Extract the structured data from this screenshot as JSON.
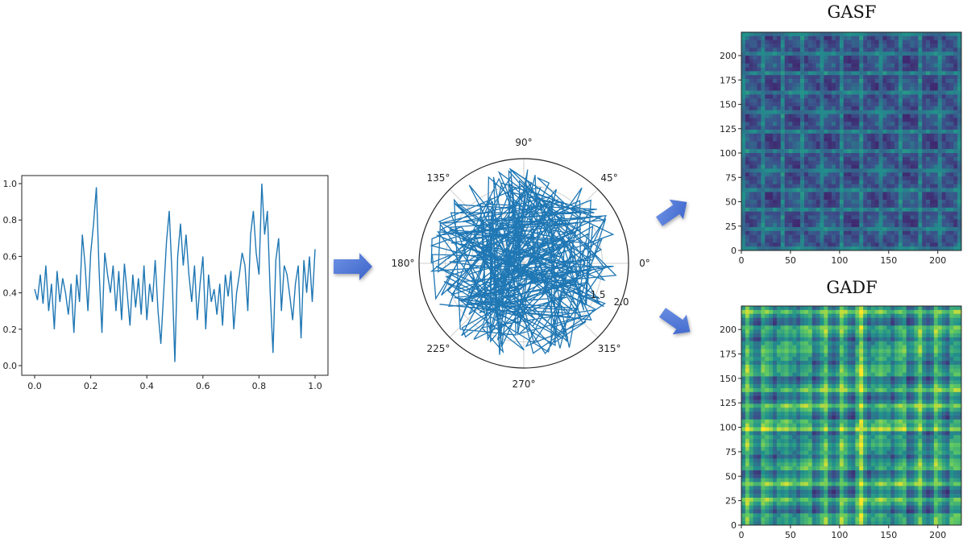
{
  "chart_data": [
    {
      "type": "line",
      "xlim": [
        0.0,
        1.0
      ],
      "ylim": [
        0.0,
        1.0
      ],
      "x_ticks": [
        "0.0",
        "0.2",
        "0.4",
        "0.6",
        "0.8",
        "1.0"
      ],
      "y_ticks": [
        "0.0",
        "0.2",
        "0.4",
        "0.6",
        "0.8",
        "1.0"
      ],
      "line_color": "#1f77b4",
      "series": [
        {
          "x": [
            0.0,
            0.01,
            0.02,
            0.03,
            0.04,
            0.05,
            0.06,
            0.07,
            0.08,
            0.09,
            0.1,
            0.11,
            0.12,
            0.13,
            0.14,
            0.15,
            0.16,
            0.17,
            0.18,
            0.19,
            0.2,
            0.21,
            0.22,
            0.23,
            0.24,
            0.25,
            0.26,
            0.27,
            0.28,
            0.29,
            0.3,
            0.31,
            0.32,
            0.33,
            0.34,
            0.35,
            0.36,
            0.37,
            0.38,
            0.39,
            0.4,
            0.41,
            0.42,
            0.43,
            0.44,
            0.45,
            0.46,
            0.47,
            0.48,
            0.49,
            0.5,
            0.51,
            0.52,
            0.53,
            0.54,
            0.55,
            0.56,
            0.57,
            0.58,
            0.59,
            0.6,
            0.61,
            0.62,
            0.63,
            0.64,
            0.65,
            0.66,
            0.67,
            0.68,
            0.69,
            0.7,
            0.71,
            0.72,
            0.73,
            0.74,
            0.75,
            0.76,
            0.77,
            0.78,
            0.79,
            0.8,
            0.81,
            0.82,
            0.83,
            0.84,
            0.85,
            0.86,
            0.87,
            0.88,
            0.89,
            0.9,
            0.91,
            0.92,
            0.93,
            0.94,
            0.95,
            0.96,
            0.97,
            0.98,
            0.99,
            1.0
          ],
          "y": [
            0.42,
            0.36,
            0.5,
            0.34,
            0.55,
            0.3,
            0.45,
            0.2,
            0.52,
            0.35,
            0.48,
            0.4,
            0.28,
            0.45,
            0.18,
            0.5,
            0.35,
            0.72,
            0.55,
            0.3,
            0.62,
            0.78,
            0.98,
            0.52,
            0.18,
            0.62,
            0.5,
            0.4,
            0.55,
            0.3,
            0.52,
            0.25,
            0.56,
            0.4,
            0.22,
            0.5,
            0.32,
            0.48,
            0.28,
            0.55,
            0.25,
            0.45,
            0.35,
            0.58,
            0.3,
            0.12,
            0.4,
            0.68,
            0.85,
            0.5,
            0.02,
            0.6,
            0.78,
            0.55,
            0.72,
            0.5,
            0.35,
            0.55,
            0.25,
            0.45,
            0.6,
            0.2,
            0.5,
            0.35,
            0.42,
            0.28,
            0.45,
            0.22,
            0.5,
            0.38,
            0.52,
            0.2,
            0.4,
            0.5,
            0.62,
            0.55,
            0.3,
            0.72,
            0.85,
            0.62,
            0.5,
            1.0,
            0.72,
            0.85,
            0.4,
            0.07,
            0.58,
            0.7,
            0.3,
            0.55,
            0.5,
            0.38,
            0.25,
            0.45,
            0.55,
            0.15,
            0.58,
            0.4,
            0.6,
            0.35,
            0.64
          ]
        }
      ]
    },
    {
      "type": "polar",
      "angle_ticks": [
        "0°",
        "45°",
        "90°",
        "135°",
        "180°",
        "225°",
        "270°",
        "315°"
      ],
      "radial_ticks": [
        "1.5",
        "2.0"
      ],
      "rlim": [
        0,
        2.0
      ],
      "line_color": "#1f77b4"
    },
    {
      "type": "heatmap",
      "title": "GASF",
      "xlim": [
        0,
        224
      ],
      "ylim": [
        0,
        224
      ],
      "x_ticks": [
        "0",
        "50",
        "100",
        "150",
        "200"
      ],
      "y_ticks": [
        "0",
        "25",
        "50",
        "75",
        "100",
        "125",
        "150",
        "175",
        "200"
      ],
      "colormap": "viridis-dark"
    },
    {
      "type": "heatmap",
      "title": "GADF",
      "xlim": [
        0,
        224
      ],
      "ylim": [
        0,
        224
      ],
      "x_ticks": [
        "0",
        "50",
        "100",
        "150",
        "200"
      ],
      "y_ticks": [
        "0",
        "25",
        "50",
        "75",
        "100",
        "125",
        "150",
        "175",
        "200"
      ],
      "colormap": "viridis-light"
    }
  ],
  "arrow_color": "#4a72d4"
}
